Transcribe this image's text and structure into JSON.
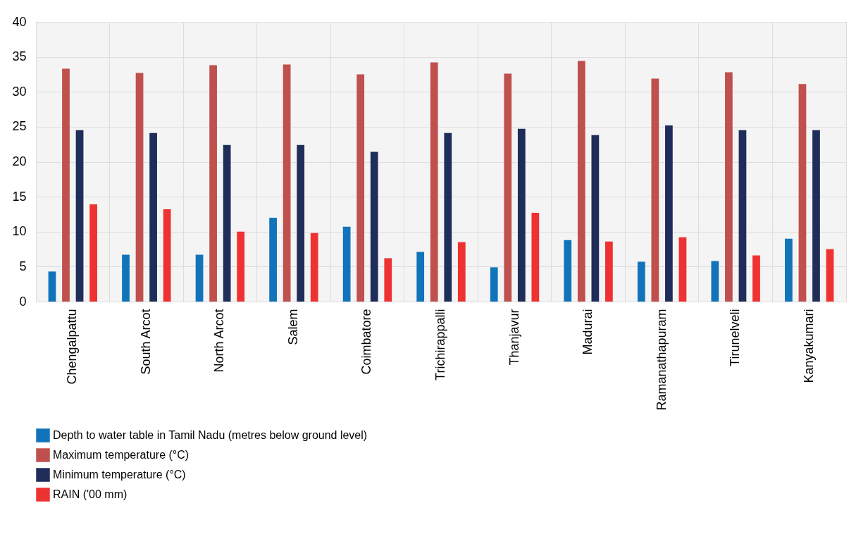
{
  "chart_data": {
    "type": "bar",
    "categories": [
      "Chengalpattu",
      "South Arcot",
      "North Arcot",
      "Salem",
      "Coimbatore",
      "Trichirappalli",
      "Thanjavur",
      "Madurai",
      "Ramanathapuram",
      "Tirunelveli",
      "Kanyakumari"
    ],
    "series": [
      {
        "name": "Depth to water table in Tamil Nadu (metres below ground level)",
        "color": "#1174bb",
        "values": [
          4.3,
          6.7,
          6.7,
          12.0,
          10.7,
          7.1,
          4.9,
          8.8,
          5.7,
          5.8,
          9.0
        ]
      },
      {
        "name": "Maximum temperature (°C)",
        "color": "#c0504d",
        "values": [
          33.3,
          32.7,
          33.8,
          33.9,
          32.5,
          34.2,
          32.6,
          34.4,
          31.9,
          32.8,
          31.1
        ]
      },
      {
        "name": "Minimum temperature (°C)",
        "color": "#1f2d5a",
        "values": [
          24.5,
          24.1,
          22.4,
          22.4,
          21.4,
          24.1,
          24.7,
          23.8,
          25.2,
          24.5,
          24.5
        ]
      },
      {
        "name": "RAIN ('00 mm)",
        "color": "#ee3231",
        "values": [
          13.9,
          13.2,
          10.0,
          9.8,
          6.2,
          8.5,
          12.7,
          8.6,
          9.2,
          6.6,
          7.5
        ]
      }
    ],
    "ylim": [
      0,
      40
    ],
    "yticks": [
      0,
      5,
      10,
      15,
      20,
      25,
      30,
      35,
      40
    ],
    "grid": true,
    "legend": "bottom"
  }
}
